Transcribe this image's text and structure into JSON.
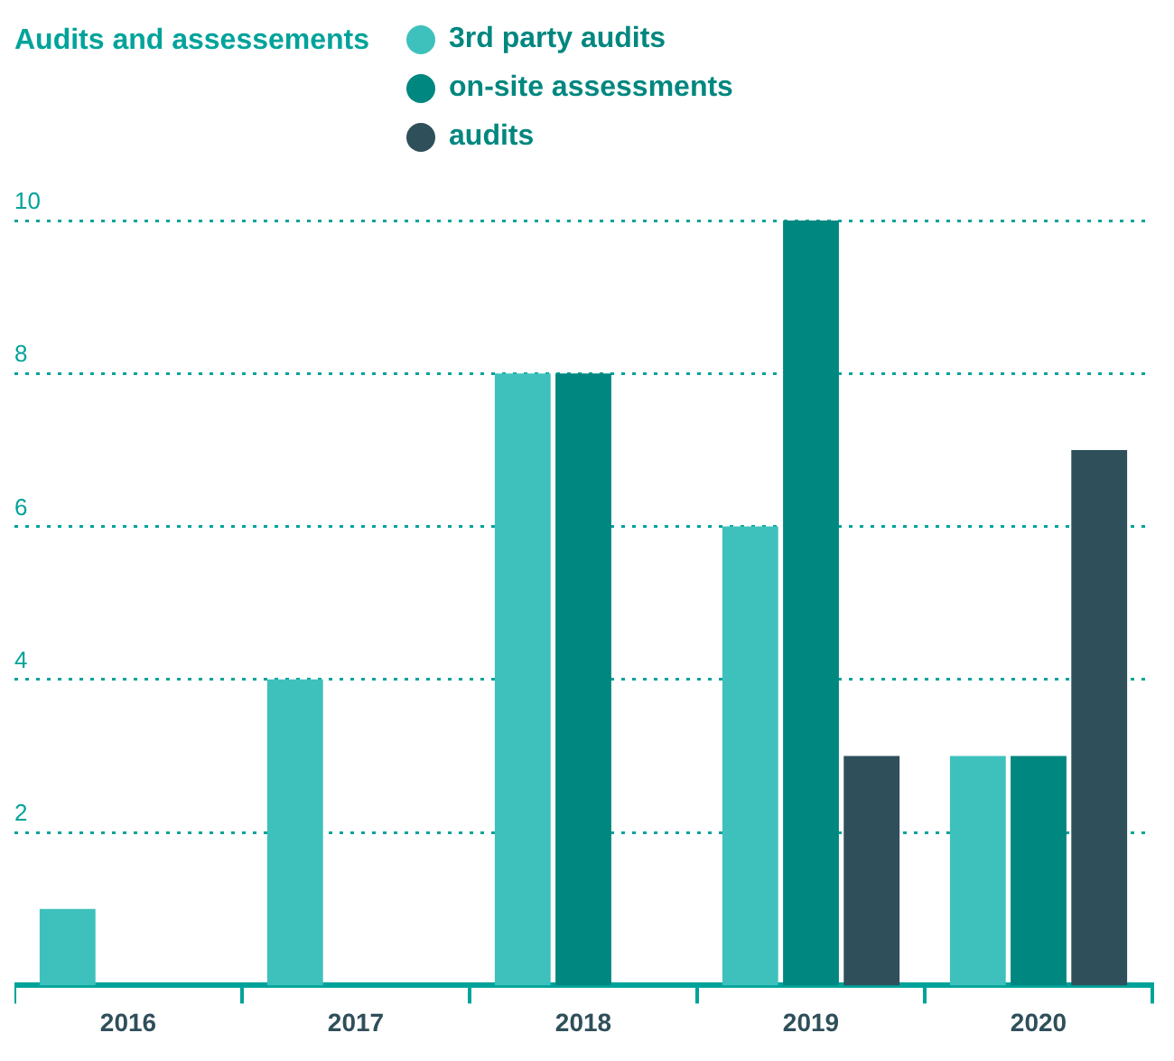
{
  "chart_data": {
    "type": "bar",
    "title": "Audits and assessements",
    "categories": [
      "2016",
      "2017",
      "2018",
      "2019",
      "2020"
    ],
    "series": [
      {
        "name": "3rd party audits",
        "color": "#3ec1bc",
        "values": [
          1,
          4,
          8,
          6,
          3
        ]
      },
      {
        "name": "on-site assessments",
        "color": "#00877f",
        "values": [
          null,
          null,
          8,
          10,
          3
        ]
      },
      {
        "name": "audits",
        "color": "#2f4f5a",
        "values": [
          null,
          null,
          null,
          3,
          7
        ]
      }
    ],
    "ylim": [
      0,
      10
    ],
    "yticks": [
      2,
      4,
      6,
      8,
      10
    ],
    "grid": "y",
    "legend": "top"
  }
}
